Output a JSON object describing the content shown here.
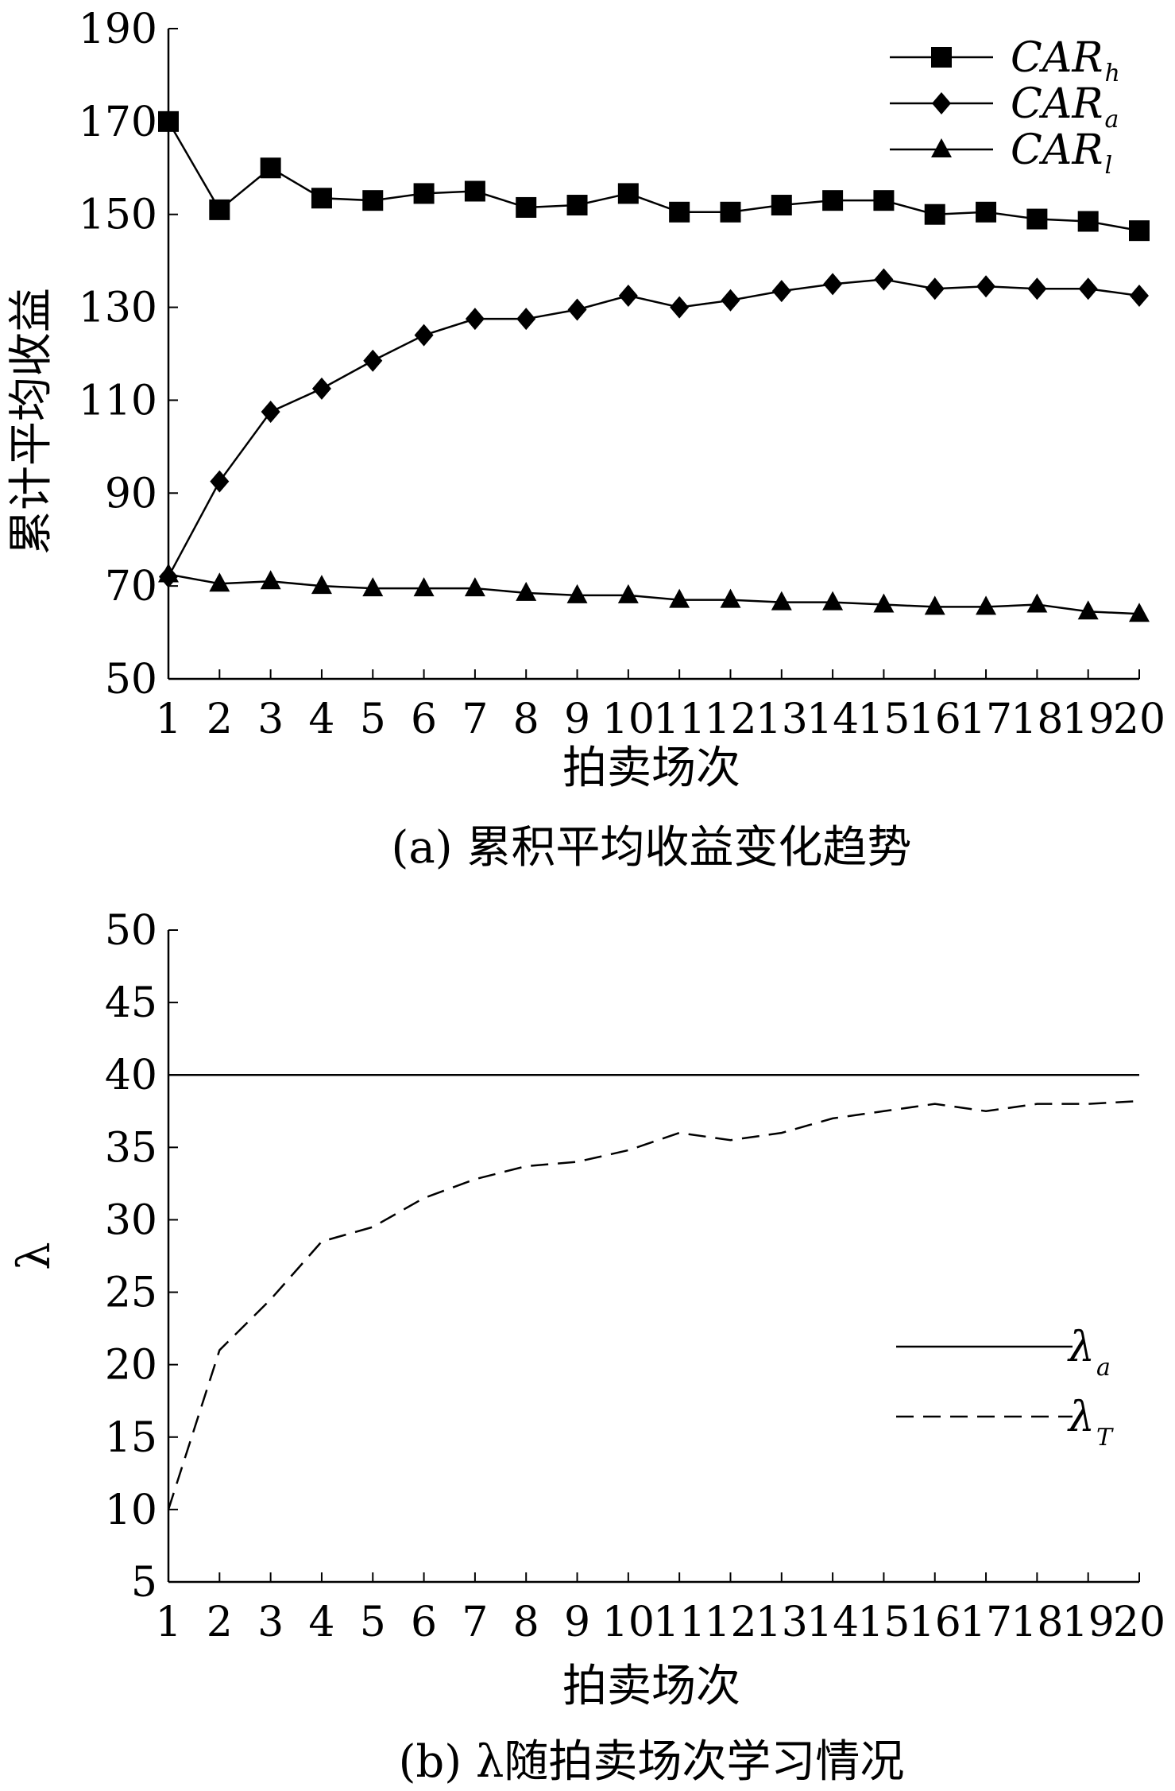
{
  "chart_data": [
    {
      "type": "line",
      "caption": "(a) 累积平均收益变化趋势",
      "xlabel": "拍卖场次",
      "ylabel": "累计平均收益",
      "x": [
        1,
        2,
        3,
        4,
        5,
        6,
        7,
        8,
        9,
        10,
        11,
        12,
        13,
        14,
        15,
        16,
        17,
        18,
        19,
        20
      ],
      "x_tick_labels": [
        "1",
        "2",
        "3",
        "4",
        "5",
        "6",
        "7",
        "8",
        "9",
        "10",
        "11",
        "12",
        "13",
        "14",
        "15",
        "16",
        "17",
        "18",
        "19",
        "20"
      ],
      "ylim": [
        50,
        190
      ],
      "yticks": [
        50,
        70,
        90,
        110,
        130,
        150,
        170,
        190
      ],
      "legend_position": "top-right",
      "grid": false,
      "series": [
        {
          "name": "CAR",
          "subscript": "h",
          "marker": "square",
          "values": [
            170,
            151,
            160,
            153.5,
            153,
            154.5,
            155,
            151.5,
            152,
            154.5,
            150.5,
            150.5,
            152,
            153,
            153,
            150,
            150.5,
            149,
            148.5,
            146.5
          ]
        },
        {
          "name": "CAR",
          "subscript": "a",
          "marker": "diamond",
          "values": [
            72,
            92.5,
            107.5,
            112.5,
            118.5,
            124,
            127.5,
            127.5,
            129.5,
            132.5,
            130,
            131.5,
            133.5,
            135,
            136,
            134,
            134.5,
            134,
            134,
            132.5
          ]
        },
        {
          "name": "CAR",
          "subscript": "l",
          "marker": "triangle",
          "values": [
            72.5,
            70.5,
            71,
            70,
            69.5,
            69.5,
            69.5,
            68.5,
            68,
            68,
            67,
            67,
            66.5,
            66.5,
            66,
            65.5,
            65.5,
            66,
            64.5,
            64
          ]
        }
      ]
    },
    {
      "type": "line",
      "caption": "(b) λ随拍卖场次学习情况",
      "xlabel": "拍卖场次",
      "ylabel": "λ",
      "x": [
        1,
        2,
        3,
        4,
        5,
        6,
        7,
        8,
        9,
        10,
        11,
        12,
        13,
        14,
        15,
        16,
        17,
        18,
        19,
        20
      ],
      "x_tick_labels": [
        "1",
        "2",
        "3",
        "4",
        "5",
        "6",
        "7",
        "8",
        "9",
        "10",
        "11",
        "12",
        "13",
        "14",
        "15",
        "16",
        "17",
        "18",
        "19",
        "20"
      ],
      "ylim": [
        5,
        50
      ],
      "yticks": [
        5,
        10,
        15,
        20,
        25,
        30,
        35,
        40,
        45,
        50
      ],
      "legend_position": "center-right",
      "grid": false,
      "series": [
        {
          "name": "λ",
          "subscript": "a",
          "line_style": "solid",
          "values": [
            40,
            40,
            40,
            40,
            40,
            40,
            40,
            40,
            40,
            40,
            40,
            40,
            40,
            40,
            40,
            40,
            40,
            40,
            40,
            40
          ]
        },
        {
          "name": "λ",
          "subscript": "T",
          "line_style": "dashed",
          "values": [
            10,
            21,
            24.5,
            28.5,
            29.5,
            31.5,
            32.8,
            33.7,
            34,
            34.8,
            36,
            35.5,
            36,
            37,
            37.5,
            38,
            37.5,
            38,
            38,
            38.2
          ]
        }
      ]
    }
  ]
}
